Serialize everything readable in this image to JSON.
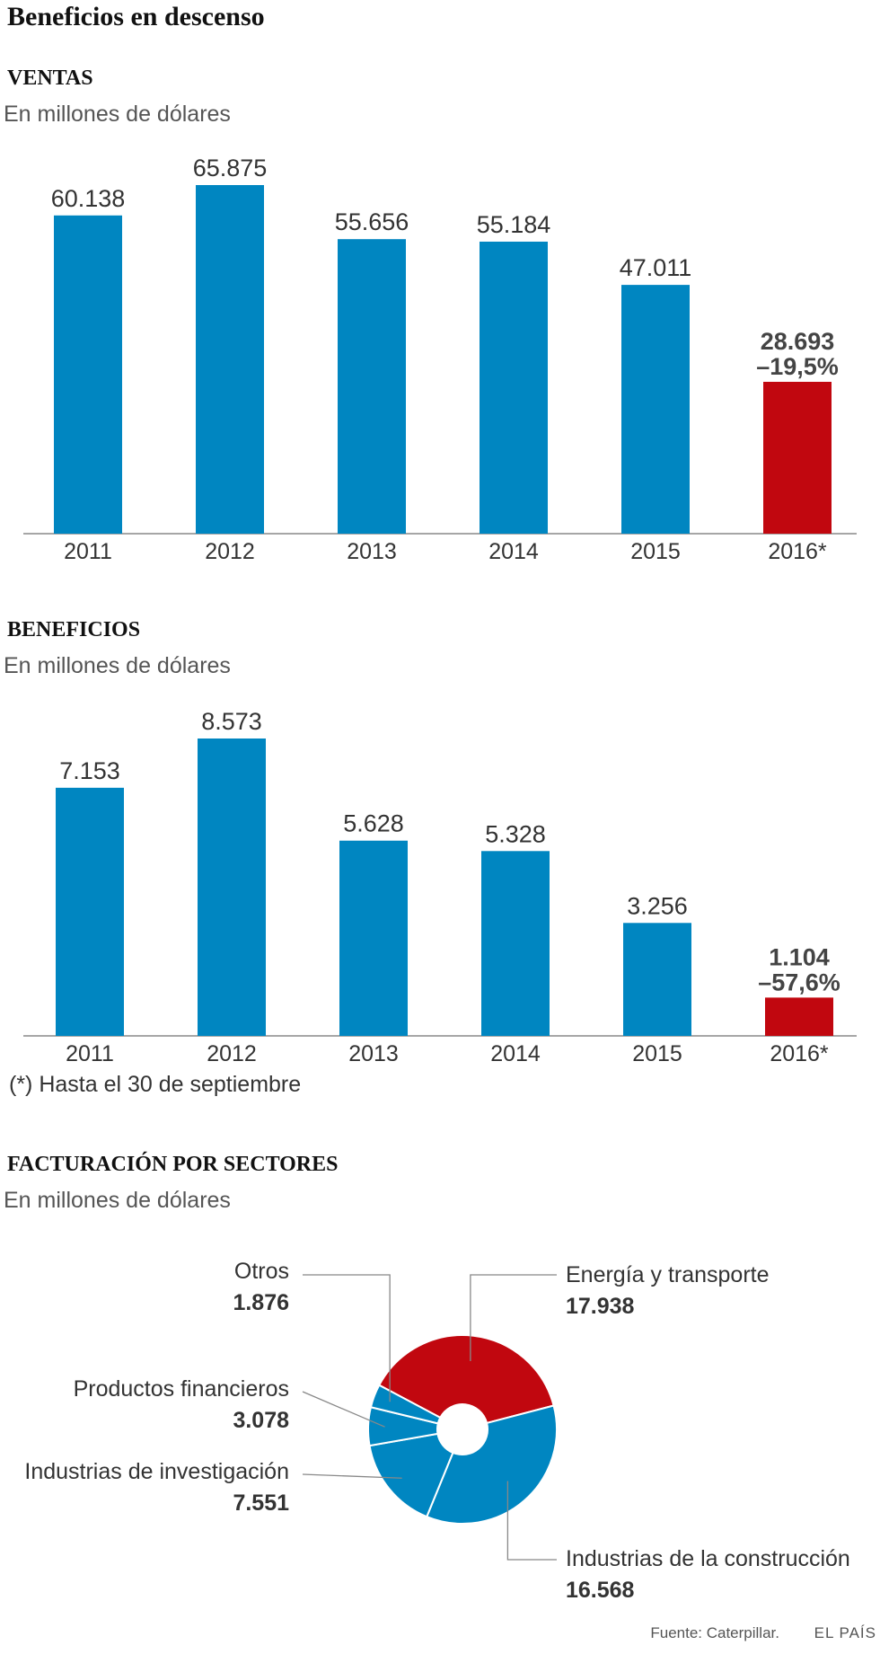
{
  "title": "Beneficios en descenso",
  "note": "(*) Hasta el 30 de septiembre",
  "source": "Fuente: Caterpillar.",
  "brand": "EL PAÍS",
  "colors": {
    "bar": "#0086c1",
    "highlight": "#c1070f",
    "axis": "#888888",
    "leader": "#888888"
  },
  "chart_data": [
    {
      "type": "bar",
      "title": "VENTAS",
      "subtitle": "En millones de dólares",
      "categories": [
        "2011",
        "2012",
        "2013",
        "2014",
        "2015",
        "2016*"
      ],
      "values": [
        60138,
        65875,
        55656,
        55184,
        47011,
        28693
      ],
      "value_labels": [
        "60.138",
        "65.875",
        "55.656",
        "55.184",
        "47.011",
        "28.693"
      ],
      "highlight_index": 5,
      "highlight_change": "–19,5%",
      "ylim": [
        0,
        65875
      ]
    },
    {
      "type": "bar",
      "title": "BENEFICIOS",
      "subtitle": "En millones de dólares",
      "categories": [
        "2011",
        "2012",
        "2013",
        "2014",
        "2015",
        "2016*"
      ],
      "values": [
        7153,
        8573,
        5628,
        5328,
        3256,
        1104
      ],
      "value_labels": [
        "7.153",
        "8.573",
        "5.628",
        "5.328",
        "3.256",
        "1.104"
      ],
      "highlight_index": 5,
      "highlight_change": "–57,6%",
      "ylim": [
        0,
        8573
      ]
    },
    {
      "type": "pie",
      "title": "FACTURACIÓN POR SECTORES",
      "subtitle": "En millones de dólares",
      "slices": [
        {
          "label": "Energía y transporte",
          "value": 17938,
          "value_label": "17.938",
          "color": "#c1070f"
        },
        {
          "label": "Industrias de la construcción",
          "value": 16568,
          "value_label": "16.568",
          "color": "#0086c1"
        },
        {
          "label": "Industrias de investigación",
          "value": 7551,
          "value_label": "7.551",
          "color": "#0086c1"
        },
        {
          "label": "Productos financieros",
          "value": 3078,
          "value_label": "3.078",
          "color": "#0086c1"
        },
        {
          "label": "Otros",
          "value": 1876,
          "value_label": "1.876",
          "color": "#0086c1"
        }
      ]
    }
  ]
}
